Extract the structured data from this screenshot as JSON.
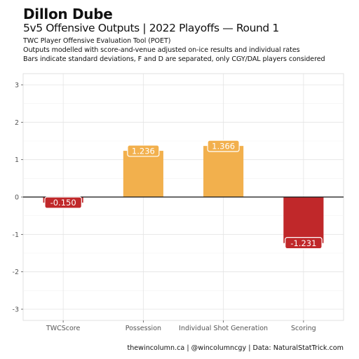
{
  "header": {
    "title": "Dillon Dube",
    "subtitle": "5v5 Offensive Outputs | 2022 Playoffs — Round 1",
    "desc_line1": "TWC Player Offensive Evaluation Tool (POET)",
    "desc_line2": "Outputs modelled with score-and-venue adjusted on-ice results and individual rates",
    "desc_line3": "Bars indicate standard deviations, F and D are separated, only CGY/DAL players considered"
  },
  "caption": "thewincolumn.ca | @wincolumncgy | Data: NaturalStatTrick.com",
  "colors": {
    "positive": "#f2b04d",
    "negative": "#c0282a"
  },
  "chart_data": {
    "type": "bar",
    "categories": [
      "TWCScore",
      "Possession",
      "Individual Shot Generation",
      "Scoring"
    ],
    "values": [
      -0.15,
      1.236,
      1.366,
      -1.231
    ],
    "value_labels": [
      "-0.150",
      "1.236",
      "1.366",
      "-1.231"
    ],
    "ylim": [
      -3.3,
      3.3
    ],
    "yticks": [
      -3,
      -2,
      -1,
      0,
      1,
      2,
      3
    ],
    "grid": true,
    "xlabel": "",
    "ylabel": ""
  }
}
